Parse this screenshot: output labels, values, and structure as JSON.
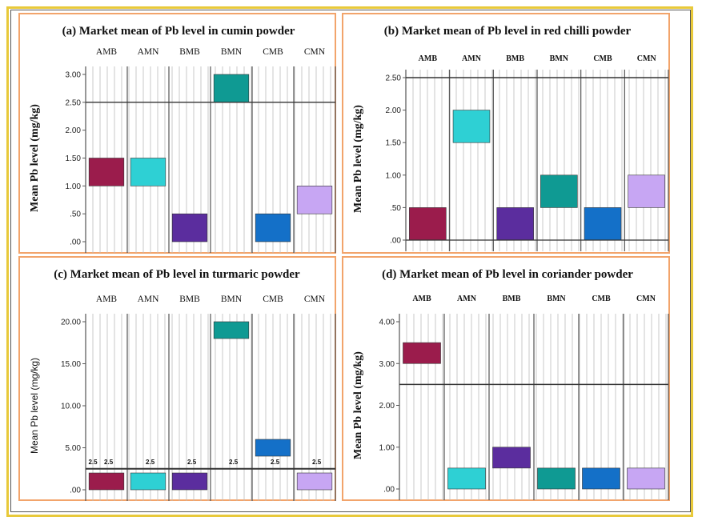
{
  "palette": {
    "AMB": "#9b1c4c",
    "AMN": "#2ed0d4",
    "BMB": "#5b2d9e",
    "BMN": "#0f9a93",
    "CMB": "#1470c8",
    "CMN": "#c7a6f3"
  },
  "chart_data": [
    {
      "type": "bar",
      "title": "(a) Market mean of Pb level in cumin powder",
      "ylabel": "Mean Pb level  (mg/kg)",
      "categories": [
        "AMB",
        "AMN",
        "BMB",
        "BMN",
        "CMB",
        "CMN"
      ],
      "ranges": [
        [
          1.0,
          1.5
        ],
        [
          1.0,
          1.5
        ],
        [
          0.0,
          0.5
        ],
        [
          2.5,
          3.0
        ],
        [
          0.0,
          0.5
        ],
        [
          0.5,
          1.0
        ]
      ],
      "reference_line": 2.5,
      "ylim": [
        0,
        3.0
      ],
      "yticks": [
        ".00",
        ".50",
        "1.00",
        "1.50",
        "2.00",
        "2.50",
        "3.00"
      ]
    },
    {
      "type": "bar",
      "title": "(b) Market mean of Pb level in red chilli powder",
      "ylabel": "Mean Pb level  (mg/kg)",
      "categories": [
        "AMB",
        "AMN",
        "BMB",
        "BMN",
        "CMB",
        "CMN"
      ],
      "ranges": [
        [
          0.0,
          0.5
        ],
        [
          1.5,
          2.0
        ],
        [
          0.0,
          0.5
        ],
        [
          0.5,
          1.0
        ],
        [
          0.0,
          0.5
        ],
        [
          0.5,
          1.0
        ]
      ],
      "reference_line": 2.5,
      "ylim": [
        0,
        2.5
      ],
      "yticks": [
        ".00",
        ".50",
        "1.00",
        "1.50",
        "2.00",
        "2.50"
      ]
    },
    {
      "type": "bar",
      "title": "(c) Market mean of Pb level in turmaric powder",
      "ylabel": "Mean Pb level (mg/kg)",
      "categories": [
        "AMB",
        "AMN",
        "BMB",
        "BMN",
        "CMB",
        "CMN"
      ],
      "ranges": [
        [
          0.0,
          2.0
        ],
        [
          0.0,
          2.0
        ],
        [
          0.0,
          2.0
        ],
        [
          18.0,
          20.0
        ],
        [
          4.0,
          6.0
        ],
        [
          0.0,
          2.0
        ]
      ],
      "reference_line": 2.5,
      "ref_label": "2.5",
      "ylim": [
        0,
        20.0
      ],
      "yticks": [
        ".00",
        "5.00",
        "10.00",
        "15.00",
        "20.00"
      ]
    },
    {
      "type": "bar",
      "title": "(d) Market mean of Pb level in coriander powder",
      "ylabel": "Mean Pb level  (mg/kg)",
      "categories": [
        "AMB",
        "AMN",
        "BMB",
        "BMN",
        "CMB",
        "CMN"
      ],
      "ranges": [
        [
          3.0,
          3.5
        ],
        [
          0.0,
          0.5
        ],
        [
          0.5,
          1.0
        ],
        [
          0.0,
          0.5
        ],
        [
          0.0,
          0.5
        ],
        [
          0.0,
          0.5
        ]
      ],
      "reference_line": 2.5,
      "ylim": [
        0,
        4.0
      ],
      "yticks": [
        ".00",
        "1.00",
        "2.00",
        "3.00",
        "4.00"
      ]
    }
  ]
}
